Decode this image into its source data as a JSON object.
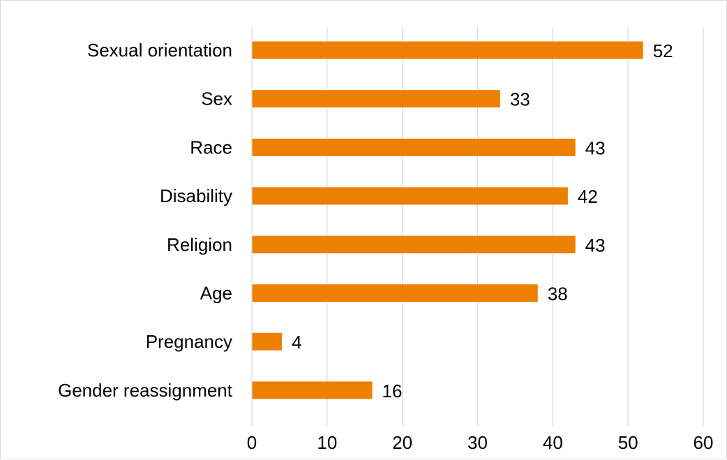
{
  "chart_data": {
    "type": "bar",
    "orientation": "horizontal",
    "categories": [
      "Sexual orientation",
      "Sex",
      "Race",
      "Disability",
      "Religion",
      "Age",
      "Pregnancy",
      "Gender reassignment"
    ],
    "values": [
      52,
      33,
      43,
      42,
      43,
      38,
      4,
      16
    ],
    "xlim": [
      0,
      60
    ],
    "x_ticks": [
      "0",
      "10",
      "20",
      "30",
      "40",
      "50",
      "60"
    ],
    "grid": "vertical",
    "legend": "none",
    "title": "",
    "xlabel": "",
    "ylabel": "",
    "bar_color": "#ed8000",
    "grid_color": "#d9d9d9"
  }
}
